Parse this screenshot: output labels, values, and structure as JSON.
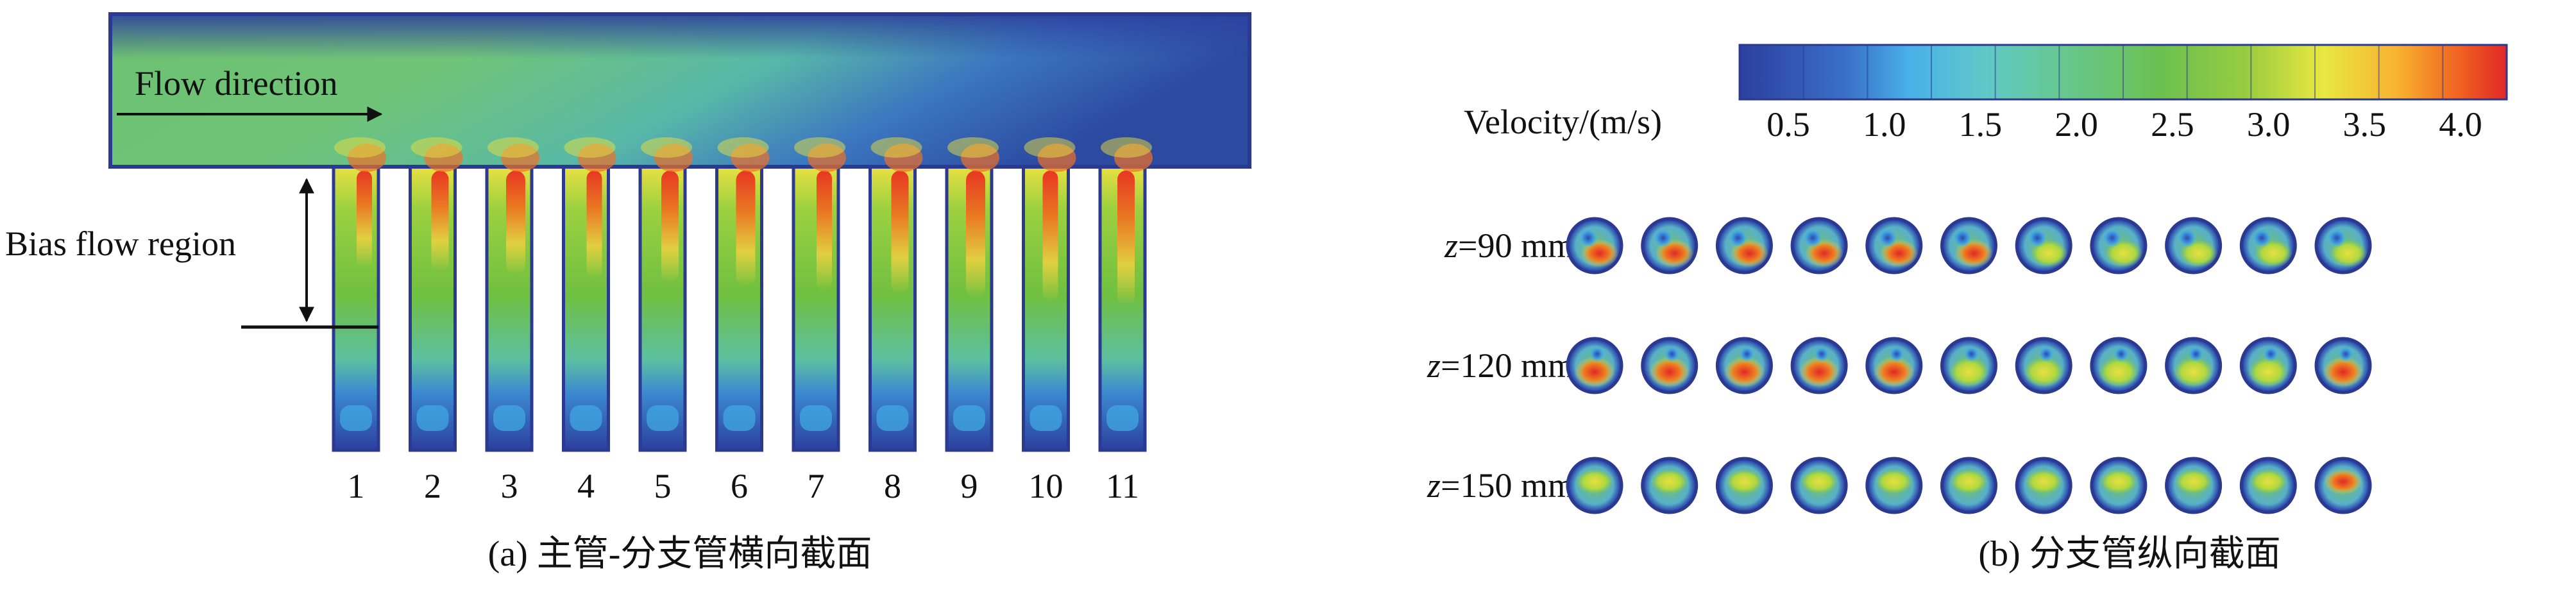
{
  "panel_a": {
    "flow_label": "Flow direction",
    "bias_label": "Bias flow region",
    "branch_numbers": [
      "1",
      "2",
      "3",
      "4",
      "5",
      "6",
      "7",
      "8",
      "9",
      "10",
      "11"
    ],
    "caption": "(a) 主管-分支管横向截面"
  },
  "panel_b": {
    "colorbar": {
      "title": "Velocity/(m/s)",
      "tick_labels": [
        "0.5",
        "1.0",
        "1.5",
        "2.0",
        "2.5",
        "3.0",
        "3.5",
        "4.0"
      ],
      "colors": [
        "#2c3f9e",
        "#3a6cc8",
        "#4aa8e0",
        "#5cc8d0",
        "#66c8a0",
        "#6cc060",
        "#80c040",
        "#a8d040",
        "#e8e840",
        "#f8b030",
        "#f06020",
        "#e02828"
      ]
    },
    "row_labels": [
      {
        "var": "z",
        "rest": "=90 mm"
      },
      {
        "var": "z",
        "rest": "=120 mm"
      },
      {
        "var": "z",
        "rest": "=150 mm"
      }
    ],
    "caption": "(b) 分支管纵向截面"
  },
  "colors": {
    "outline": "#2b3990",
    "low": "#2c3f9e",
    "main_flow": "#6cc070",
    "high": "#e83020"
  }
}
